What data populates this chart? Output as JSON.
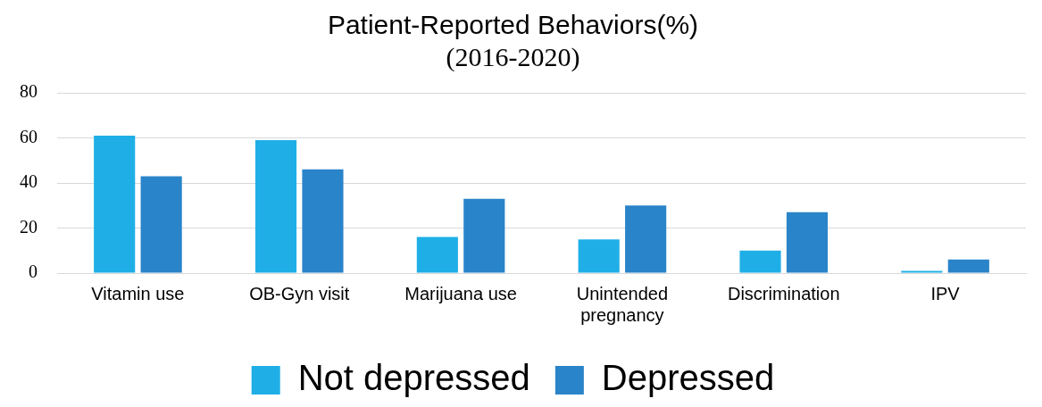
{
  "chart_data": {
    "type": "bar",
    "title": "Patient-Reported Behaviors(%)",
    "subtitle": "(2016-2020)",
    "categories": [
      "Vitamin use",
      "OB-Gyn visit",
      "Marijuana use",
      "Unintended pregnancy",
      "Discrimination",
      "IPV"
    ],
    "series": [
      {
        "name": "Not depressed",
        "color": "#1fafe6",
        "values": [
          61,
          59,
          16,
          15,
          10,
          1
        ]
      },
      {
        "name": "Depressed",
        "color": "#2a84c9",
        "values": [
          43,
          46,
          33,
          30,
          27,
          6
        ]
      }
    ],
    "ylim": [
      0,
      80
    ],
    "yticks": [
      0,
      20,
      40,
      60,
      80
    ],
    "grid": "y",
    "legend": "bottom"
  }
}
